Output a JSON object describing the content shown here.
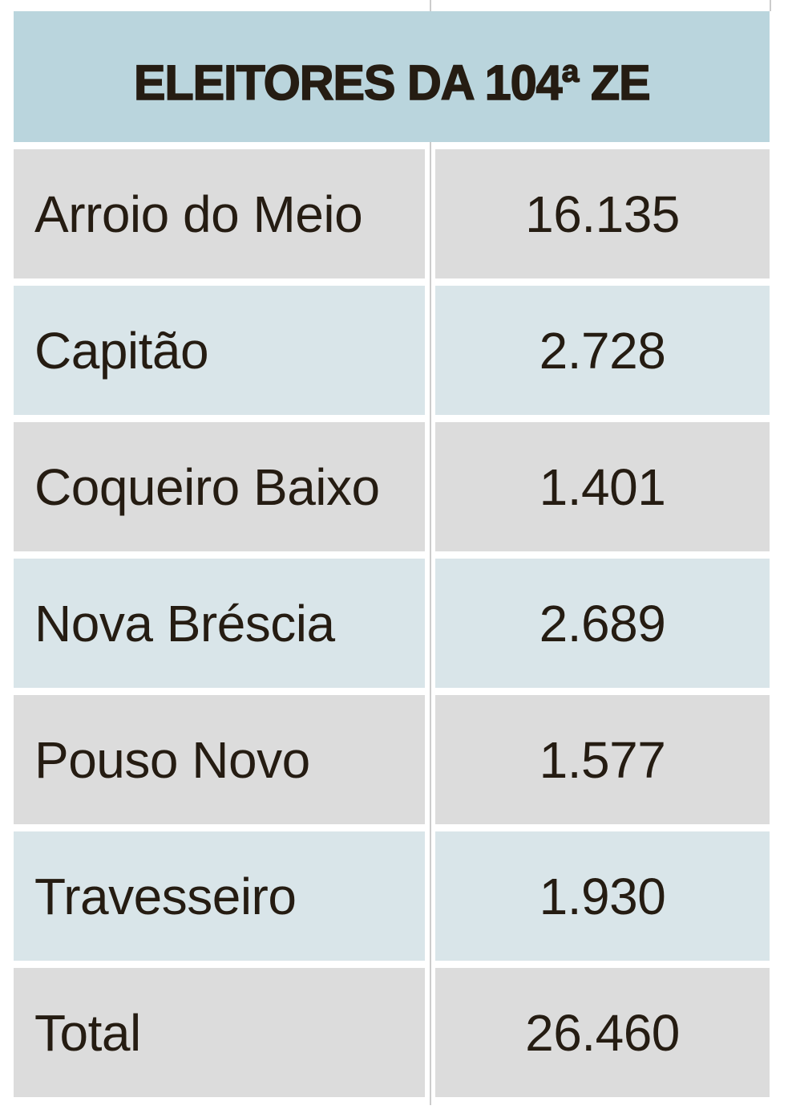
{
  "table": {
    "title": "ELEITORES DA 104ª ZE",
    "rows": [
      {
        "label": "Arroio do Meio",
        "value": "16.135"
      },
      {
        "label": "Capitão",
        "value": "2.728"
      },
      {
        "label": "Coqueiro Baixo",
        "value": "1.401"
      },
      {
        "label": "Nova Bréscia",
        "value": "2.689"
      },
      {
        "label": "Pouso Novo",
        "value": "1.577"
      },
      {
        "label": "Travesseiro",
        "value": "1.930"
      },
      {
        "label": "Total",
        "value": "26.460"
      }
    ]
  },
  "colors": {
    "header_bg": "#bad5dd",
    "row_gray": "#dcdcdc",
    "row_blue": "#d9e5e9",
    "text": "#251c12",
    "divider_line": "#cccccc"
  },
  "chart_data": {
    "type": "table",
    "title": "ELEITORES DA 104ª ZE",
    "categories": [
      "Arroio do Meio",
      "Capitão",
      "Coqueiro Baixo",
      "Nova Bréscia",
      "Pouso Novo",
      "Travesseiro",
      "Total"
    ],
    "values": [
      16135,
      2728,
      1401,
      2689,
      1577,
      1930,
      26460
    ],
    "values_formatted": [
      "16.135",
      "2.728",
      "1.401",
      "2.689",
      "1.577",
      "1.930",
      "26.460"
    ],
    "layout_hints": {
      "header_merged_across_columns": true,
      "row_striping": [
        "gray",
        "blue",
        "gray",
        "blue",
        "gray",
        "blue",
        "gray"
      ],
      "value_alignment": "center",
      "label_alignment": "left"
    }
  }
}
